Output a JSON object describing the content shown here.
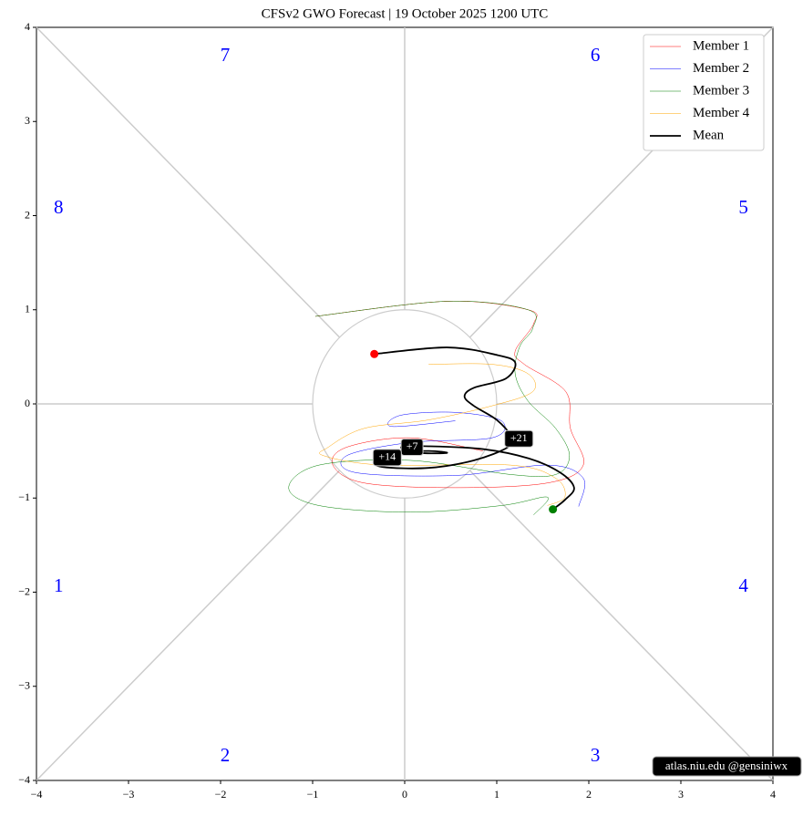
{
  "chart_data": {
    "type": "phase",
    "title": "CFSv2 GWO Forecast   |   19  October  2025 1200 UTC",
    "xlim": [
      -4,
      4
    ],
    "ylim": [
      -4,
      4
    ],
    "xticks": [
      {
        "value": -4,
        "label": "−4"
      },
      {
        "value": -3,
        "label": "−3"
      },
      {
        "value": -2,
        "label": "−2"
      },
      {
        "value": -1,
        "label": "−1"
      },
      0,
      1,
      2,
      3,
      4
    ],
    "yticks": [
      {
        "value": -4,
        "label": "−4"
      },
      {
        "value": -3,
        "label": "−3"
      },
      {
        "value": -2,
        "label": "−2"
      },
      {
        "value": -1,
        "label": "−1"
      },
      0,
      1,
      2,
      3,
      4
    ],
    "phase_labels": [
      "1",
      "2",
      "3",
      "4",
      "5",
      "6",
      "7",
      "8"
    ],
    "series": [
      {
        "name": "Member 1",
        "color": "#ff0000",
        "x": [
          -0.97,
          0.46,
          1.34,
          1.4,
          1.2,
          1.3,
          1.75,
          1.8,
          1.94,
          1.55,
          0.55,
          -0.44,
          -0.78,
          -0.63,
          0.06,
          0.85
        ],
        "y": [
          0.93,
          1.09,
          1.0,
          0.85,
          0.56,
          0.42,
          0.13,
          -0.26,
          -0.65,
          -0.84,
          -0.89,
          -0.84,
          -0.65,
          -0.46,
          -0.36,
          -0.5
        ]
      },
      {
        "name": "Member 2",
        "color": "#0000ff",
        "x": [
          0.55,
          -0.14,
          -0.04,
          0.55,
          1.05,
          0.95,
          0.06,
          -0.63,
          -0.53,
          0.55,
          1.55,
          1.94,
          1.89
        ],
        "y": [
          -0.18,
          -0.24,
          -0.12,
          -0.09,
          -0.18,
          -0.36,
          -0.41,
          -0.55,
          -0.73,
          -0.76,
          -0.65,
          -0.79,
          -1.09
        ]
      },
      {
        "name": "Member 3",
        "color": "#008000",
        "x": [
          -0.97,
          0.46,
          1.34,
          1.39,
          1.25,
          1.2,
          1.34,
          1.64,
          1.79,
          1.64,
          1.15,
          0.06,
          -0.93,
          -1.26,
          -0.93,
          0.06,
          1.05,
          1.55,
          1.4
        ],
        "y": [
          0.93,
          1.09,
          1.0,
          0.8,
          0.61,
          0.32,
          0.03,
          -0.26,
          -0.55,
          -0.75,
          -0.75,
          -0.6,
          -0.65,
          -0.89,
          -1.08,
          -1.15,
          -1.08,
          -0.99,
          -1.18
        ]
      },
      {
        "name": "Member 4",
        "color": "#ffa500",
        "x": [
          0.26,
          0.95,
          1.34,
          1.39,
          0.95,
          0.26,
          -0.44,
          -0.83,
          -0.88,
          -0.24,
          1.15,
          1.64,
          1.74,
          1.55
        ],
        "y": [
          0.42,
          0.42,
          0.32,
          0.13,
          -0.02,
          -0.17,
          -0.26,
          -0.46,
          -0.55,
          -0.65,
          -0.65,
          -0.79,
          -0.99,
          -1.08
        ]
      },
      {
        "name": "Mean",
        "color": "#000000",
        "x": [
          -0.33,
          0.46,
          1.0,
          1.2,
          1.1,
          0.75,
          0.65,
          0.75,
          1.0,
          1.15,
          1.12,
          0.75,
          0.26,
          -0.24,
          -0.33,
          -0.14,
          0.26,
          0.46,
          0.16,
          -0.04,
          0.26,
          0.85,
          1.35,
          1.69,
          1.84,
          1.74,
          1.61
        ],
        "y": [
          0.53,
          0.6,
          0.52,
          0.44,
          0.27,
          0.17,
          0.08,
          -0.02,
          -0.17,
          -0.34,
          -0.46,
          -0.6,
          -0.68,
          -0.67,
          -0.6,
          -0.52,
          -0.5,
          -0.52,
          -0.52,
          -0.46,
          -0.45,
          -0.48,
          -0.58,
          -0.73,
          -0.89,
          -1.02,
          -1.12
        ]
      }
    ],
    "annotations": [
      {
        "text": "+7",
        "x": 0.08,
        "y": -0.46
      },
      {
        "text": "+14",
        "x": -0.19,
        "y": -0.57
      },
      {
        "text": "+21",
        "x": 1.24,
        "y": -0.37
      }
    ],
    "legend": "upper right",
    "watermark": "atlas.niu.edu  @gensiniwx"
  }
}
